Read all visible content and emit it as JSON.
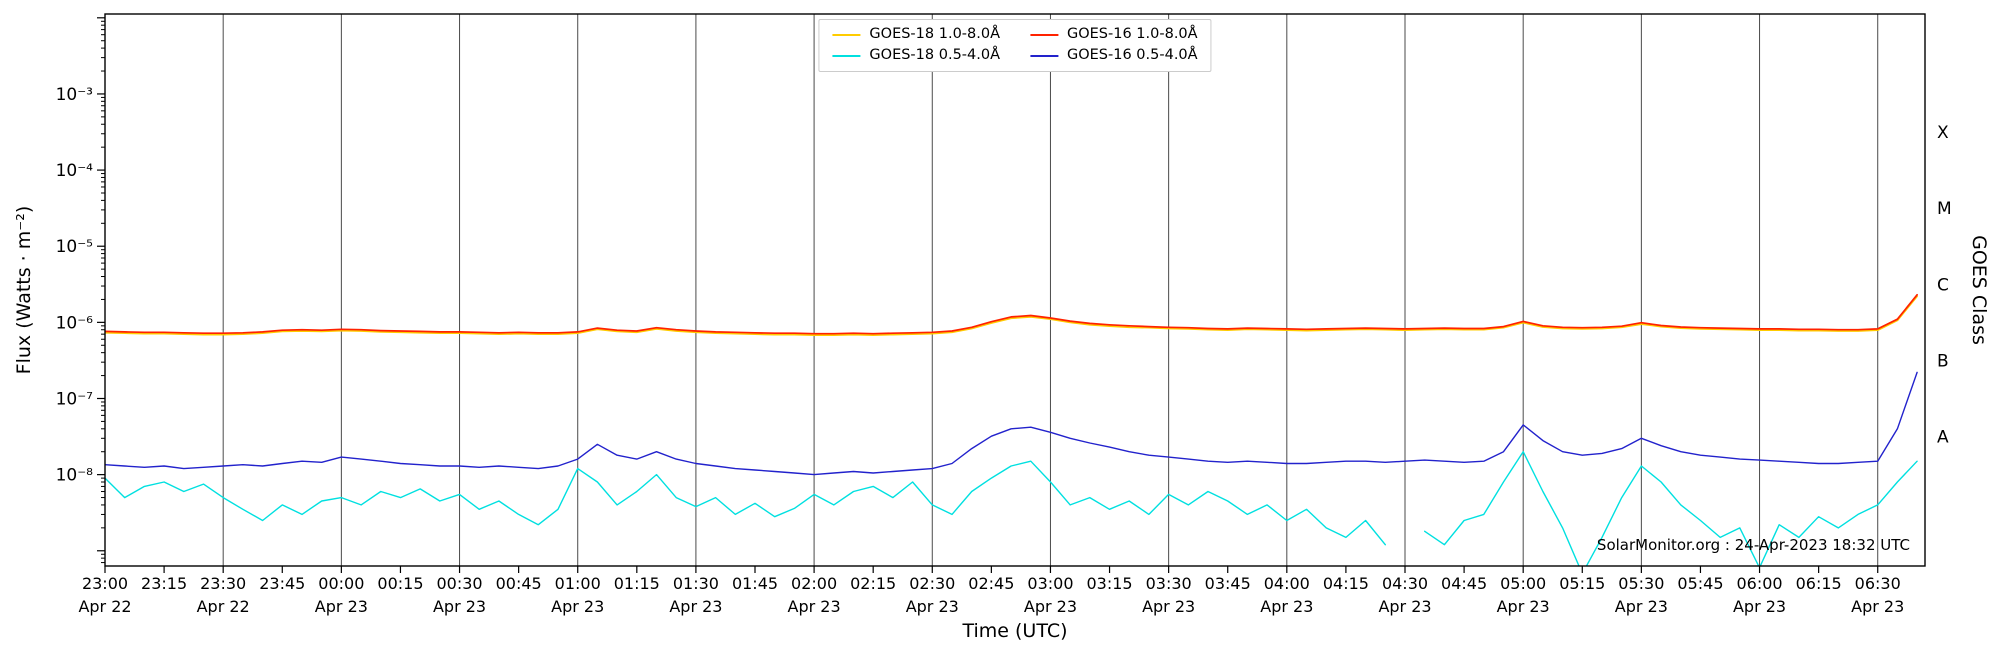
{
  "chart_data": {
    "type": "line",
    "title": "",
    "xlabel": "Time (UTC)",
    "ylabel": "Flux (Watts · m⁻²)",
    "ylabel_right": "GOES Class",
    "watermark": "SolarMonitor.org : 24-Apr-2023 18:32 UTC",
    "x_axis": {
      "unit": "minutes after 2023-04-22 23:00 UTC",
      "min": 0,
      "max": 462,
      "tick_step_min": 15,
      "grid_step_min": 30,
      "tick_labels": [
        "23:00",
        "23:15",
        "23:30",
        "23:45",
        "00:00",
        "00:15",
        "00:30",
        "00:45",
        "01:00",
        "01:15",
        "01:30",
        "01:45",
        "02:00",
        "02:15",
        "02:30",
        "02:45",
        "03:00",
        "03:15",
        "03:30",
        "03:45",
        "04:00",
        "04:15",
        "04:30",
        "04:45",
        "05:00",
        "05:15",
        "05:30",
        "05:45",
        "06:00",
        "06:15",
        "06:30"
      ],
      "date_step_min": 30,
      "date_labels": [
        "Apr 22",
        "Apr 22",
        "Apr 23",
        "Apr 23",
        "Apr 23",
        "Apr 23",
        "Apr 23",
        "Apr 23",
        "Apr 23",
        "Apr 23",
        "Apr 23",
        "Apr 23",
        "Apr 23",
        "Apr 23",
        "Apr 23",
        "Apr 23"
      ]
    },
    "y_axis": {
      "scale": "log",
      "min_exp": -9.2,
      "max_exp": -1.95,
      "tick_exponents": [
        -3,
        -4,
        -5,
        -6,
        -7,
        -8
      ],
      "tick_labels": [
        "10⁻³",
        "10⁻⁴",
        "10⁻⁵",
        "10⁻⁶",
        "10⁻⁷",
        "10⁻⁸"
      ]
    },
    "right_axis_classes": [
      {
        "label": "X",
        "exp": -3.5
      },
      {
        "label": "M",
        "exp": -4.5
      },
      {
        "label": "C",
        "exp": -5.5
      },
      {
        "label": "B",
        "exp": -6.5
      },
      {
        "label": "A",
        "exp": -7.5
      }
    ],
    "grid": {
      "vertical": true,
      "horizontal": false,
      "color": "#4a4a4a"
    },
    "legend": {
      "position": "top-center",
      "order": [
        0,
        2,
        1,
        3
      ]
    },
    "series": [
      {
        "name": "GOES-18 1.0-8.0Å",
        "color": "#ffcc00",
        "t_start_min": 0,
        "t_step_min": 5,
        "scale": 1e-07,
        "values": [
          7.3,
          7.2,
          7.1,
          7.1,
          7.0,
          6.9,
          6.9,
          7.0,
          7.2,
          7.6,
          7.7,
          7.6,
          7.8,
          7.7,
          7.5,
          7.4,
          7.3,
          7.2,
          7.2,
          7.1,
          7.0,
          7.1,
          7.0,
          7.0,
          7.2,
          8.1,
          7.6,
          7.4,
          8.2,
          7.7,
          7.4,
          7.2,
          7.1,
          7.0,
          6.9,
          6.9,
          6.8,
          6.8,
          6.9,
          6.8,
          6.9,
          7.0,
          7.1,
          7.4,
          8.3,
          9.8,
          11.3,
          11.8,
          11.0,
          10.0,
          9.3,
          8.9,
          8.6,
          8.5,
          8.3,
          8.2,
          8.0,
          7.9,
          8.1,
          8.0,
          7.9,
          7.8,
          7.9,
          8.0,
          8.1,
          8.0,
          7.9,
          8.0,
          8.1,
          8.0,
          8.0,
          8.5,
          9.9,
          8.7,
          8.3,
          8.2,
          8.3,
          8.6,
          9.5,
          8.8,
          8.4,
          8.2,
          8.1,
          8.0,
          7.9,
          7.9,
          7.8,
          7.8,
          7.7,
          7.7,
          7.9,
          10.6,
          22.0
        ]
      },
      {
        "name": "GOES-18 0.5-4.0Å",
        "color": "#00e0e0",
        "t_start_min": 0,
        "t_step_min": 5,
        "scale": 1e-09,
        "values": [
          9,
          5,
          7,
          8,
          6,
          7.5,
          5,
          3.5,
          2.5,
          4,
          3,
          4.5,
          5,
          4,
          6,
          5,
          6.5,
          4.5,
          5.5,
          3.5,
          4.5,
          3,
          2.2,
          3.5,
          12,
          8,
          4,
          6,
          10,
          5,
          3.8,
          5,
          3,
          4.2,
          2.8,
          3.6,
          5.5,
          4,
          6,
          7,
          5,
          8,
          4,
          3,
          6,
          9,
          13,
          15,
          8,
          4,
          5,
          3.5,
          4.5,
          3,
          5.5,
          4,
          6,
          4.5,
          3,
          4,
          2.5,
          3.5,
          2,
          1.5,
          2.5,
          1.2,
          null,
          1.8,
          1.2,
          2.5,
          3,
          8,
          20,
          6,
          2,
          0.5,
          1.5,
          5,
          13,
          8,
          4,
          2.5,
          1.5,
          2,
          0.6,
          2.2,
          1.5,
          2.8,
          2,
          3,
          4,
          8,
          15
        ]
      },
      {
        "name": "GOES-16 1.0-8.0Å",
        "color": "#ff2200",
        "t_start_min": 0,
        "t_step_min": 5,
        "scale": 1e-07,
        "values": [
          7.6,
          7.5,
          7.4,
          7.4,
          7.3,
          7.2,
          7.2,
          7.3,
          7.5,
          7.9,
          8.0,
          7.9,
          8.1,
          8.0,
          7.8,
          7.7,
          7.6,
          7.5,
          7.5,
          7.4,
          7.3,
          7.4,
          7.3,
          7.3,
          7.5,
          8.4,
          7.9,
          7.7,
          8.5,
          8.0,
          7.7,
          7.5,
          7.4,
          7.3,
          7.2,
          7.2,
          7.1,
          7.1,
          7.2,
          7.1,
          7.2,
          7.3,
          7.4,
          7.7,
          8.6,
          10.2,
          11.8,
          12.3,
          11.4,
          10.4,
          9.7,
          9.3,
          9.0,
          8.8,
          8.6,
          8.5,
          8.3,
          8.2,
          8.4,
          8.3,
          8.2,
          8.1,
          8.2,
          8.3,
          8.4,
          8.3,
          8.2,
          8.3,
          8.4,
          8.3,
          8.3,
          8.8,
          10.3,
          9.0,
          8.6,
          8.5,
          8.6,
          8.9,
          9.9,
          9.1,
          8.7,
          8.5,
          8.4,
          8.3,
          8.2,
          8.2,
          8.1,
          8.1,
          8.0,
          8.0,
          8.2,
          11.0,
          23.0
        ]
      },
      {
        "name": "GOES-16 0.5-4.0Å",
        "color": "#2222cc",
        "t_start_min": 0,
        "t_step_min": 5,
        "scale": 1e-08,
        "values": [
          1.35,
          1.3,
          1.25,
          1.3,
          1.2,
          1.25,
          1.3,
          1.35,
          1.3,
          1.4,
          1.5,
          1.45,
          1.7,
          1.6,
          1.5,
          1.4,
          1.35,
          1.3,
          1.3,
          1.25,
          1.3,
          1.25,
          1.2,
          1.3,
          1.6,
          2.5,
          1.8,
          1.6,
          2.0,
          1.6,
          1.4,
          1.3,
          1.2,
          1.15,
          1.1,
          1.05,
          1.0,
          1.05,
          1.1,
          1.05,
          1.1,
          1.15,
          1.2,
          1.4,
          2.2,
          3.2,
          4.0,
          4.2,
          3.6,
          3.0,
          2.6,
          2.3,
          2.0,
          1.8,
          1.7,
          1.6,
          1.5,
          1.45,
          1.5,
          1.45,
          1.4,
          1.4,
          1.45,
          1.5,
          1.5,
          1.45,
          1.5,
          1.55,
          1.5,
          1.45,
          1.5,
          2.0,
          4.5,
          2.8,
          2.0,
          1.8,
          1.9,
          2.2,
          3.0,
          2.4,
          2.0,
          1.8,
          1.7,
          1.6,
          1.55,
          1.5,
          1.45,
          1.4,
          1.4,
          1.45,
          1.5,
          4.0,
          22.0
        ]
      }
    ]
  }
}
